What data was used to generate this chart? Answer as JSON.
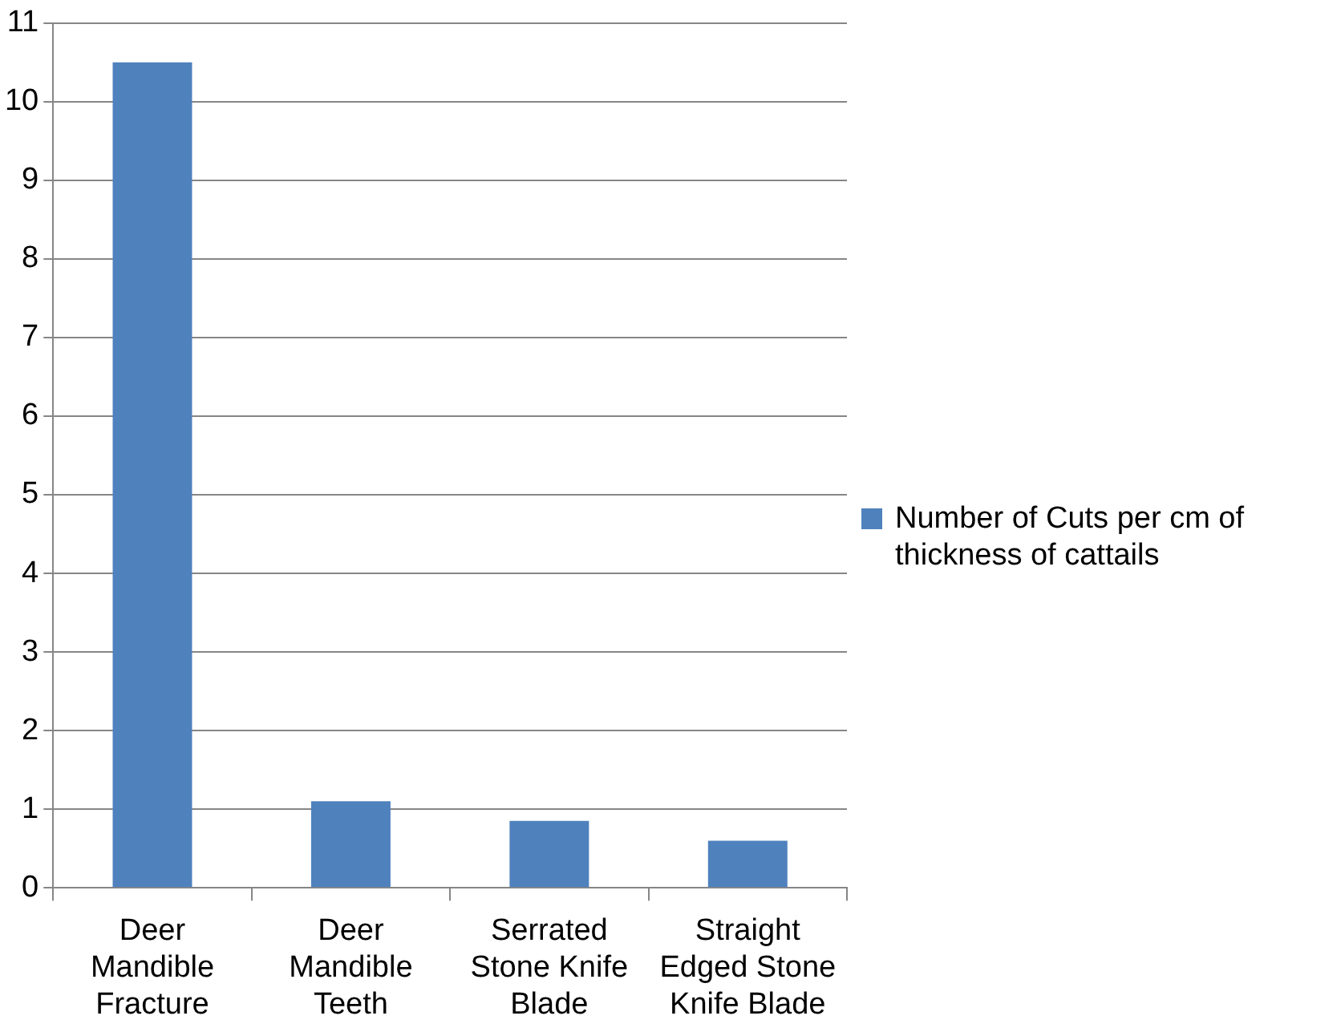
{
  "chart_data": {
    "type": "bar",
    "categories": [
      "Deer Mandible Fracture",
      "Deer Mandible Teeth",
      "Serrated Stone Knife Blade",
      "Straight Edged Stone Knife Blade"
    ],
    "series": [
      {
        "name": "Number of Cuts per cm of thickness of cattails",
        "color": "#4f81bd",
        "values": [
          10.5,
          1.1,
          0.85,
          0.6
        ]
      }
    ],
    "ylim": [
      0,
      11
    ],
    "yticks": [
      0,
      1,
      2,
      3,
      4,
      5,
      6,
      7,
      8,
      9,
      10,
      11
    ],
    "grid": "y",
    "legend": "right"
  }
}
